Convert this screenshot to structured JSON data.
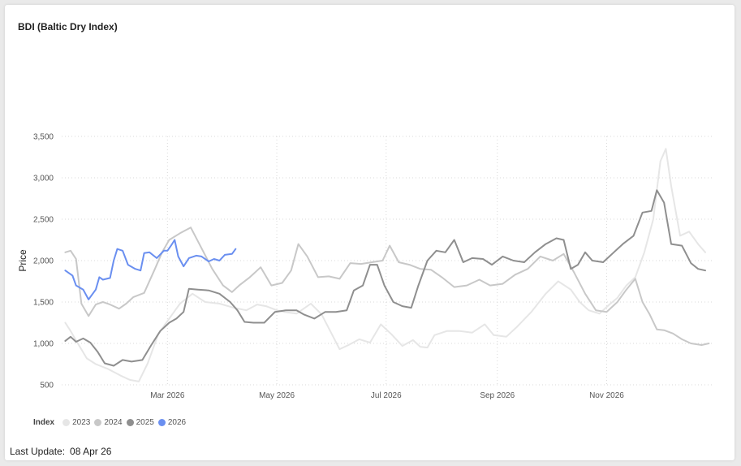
{
  "chart_data": {
    "type": "line",
    "title": "BDI (Baltic Dry Index)",
    "ylabel": "Price",
    "ylim": [
      500,
      3500
    ],
    "yticks": [
      500,
      1000,
      1500,
      2000,
      2500,
      3000,
      3500
    ],
    "ytick_labels": [
      "500",
      "1,000",
      "1,500",
      "2,000",
      "2,500",
      "3,000",
      "3,500"
    ],
    "xlim": [
      "2026-01-01",
      "2026-12-31"
    ],
    "xticks": [
      "2026-03-01",
      "2026-05-01",
      "2026-07-01",
      "2026-09-01",
      "2026-11-01"
    ],
    "xtick_labels": [
      "Mar 2026",
      "May 2026",
      "Jul 2026",
      "Sep 2026",
      "Nov 2026"
    ],
    "grid": true,
    "legend": {
      "title": "Index",
      "position": "bottom-left"
    },
    "series": [
      {
        "name": "2023",
        "color": "#e6e6e6",
        "points": [
          [
            "2026-01-03",
            1250
          ],
          [
            "2026-01-06",
            1150
          ],
          [
            "2026-01-10",
            1000
          ],
          [
            "2026-01-15",
            820
          ],
          [
            "2026-01-20",
            750
          ],
          [
            "2026-01-27",
            690
          ],
          [
            "2026-02-03",
            610
          ],
          [
            "2026-02-08",
            560
          ],
          [
            "2026-02-13",
            540
          ],
          [
            "2026-02-18",
            760
          ],
          [
            "2026-02-24",
            1120
          ],
          [
            "2026-03-02",
            1300
          ],
          [
            "2026-03-08",
            1480
          ],
          [
            "2026-03-15",
            1600
          ],
          [
            "2026-03-22",
            1500
          ],
          [
            "2026-03-30",
            1480
          ],
          [
            "2026-04-07",
            1430
          ],
          [
            "2026-04-14",
            1400
          ],
          [
            "2026-04-20",
            1470
          ],
          [
            "2026-04-25",
            1450
          ],
          [
            "2026-05-01",
            1400
          ],
          [
            "2026-05-05",
            1380
          ],
          [
            "2026-05-12",
            1360
          ],
          [
            "2026-05-20",
            1480
          ],
          [
            "2026-05-26",
            1350
          ],
          [
            "2026-06-01",
            1100
          ],
          [
            "2026-06-05",
            930
          ],
          [
            "2026-06-10",
            980
          ],
          [
            "2026-06-16",
            1050
          ],
          [
            "2026-06-22",
            1010
          ],
          [
            "2026-06-28",
            1230
          ],
          [
            "2026-07-04",
            1110
          ],
          [
            "2026-07-10",
            970
          ],
          [
            "2026-07-16",
            1040
          ],
          [
            "2026-07-20",
            960
          ],
          [
            "2026-07-24",
            950
          ],
          [
            "2026-07-28",
            1100
          ],
          [
            "2026-08-04",
            1150
          ],
          [
            "2026-08-11",
            1150
          ],
          [
            "2026-08-18",
            1130
          ],
          [
            "2026-08-25",
            1230
          ],
          [
            "2026-08-30",
            1100
          ],
          [
            "2026-09-06",
            1080
          ],
          [
            "2026-09-12",
            1200
          ],
          [
            "2026-09-20",
            1380
          ],
          [
            "2026-09-28",
            1600
          ],
          [
            "2026-10-05",
            1750
          ],
          [
            "2026-10-12",
            1650
          ],
          [
            "2026-10-17",
            1500
          ],
          [
            "2026-10-22",
            1400
          ],
          [
            "2026-10-28",
            1360
          ],
          [
            "2026-11-02",
            1460
          ],
          [
            "2026-11-07",
            1550
          ],
          [
            "2026-11-12",
            1700
          ],
          [
            "2026-11-17",
            1800
          ],
          [
            "2026-11-22",
            2100
          ],
          [
            "2026-11-27",
            2500
          ],
          [
            "2026-12-01",
            3200
          ],
          [
            "2026-12-04",
            3350
          ],
          [
            "2026-12-07",
            2900
          ],
          [
            "2026-12-12",
            2300
          ],
          [
            "2026-12-17",
            2350
          ],
          [
            "2026-12-22",
            2200
          ],
          [
            "2026-12-26",
            2100
          ]
        ]
      },
      {
        "name": "2024",
        "color": "#c8c8c8",
        "points": [
          [
            "2026-01-03",
            2100
          ],
          [
            "2026-01-06",
            2120
          ],
          [
            "2026-01-09",
            2020
          ],
          [
            "2026-01-12",
            1480
          ],
          [
            "2026-01-16",
            1330
          ],
          [
            "2026-01-20",
            1470
          ],
          [
            "2026-01-24",
            1500
          ],
          [
            "2026-01-28",
            1470
          ],
          [
            "2026-02-02",
            1420
          ],
          [
            "2026-02-06",
            1480
          ],
          [
            "2026-02-10",
            1560
          ],
          [
            "2026-02-16",
            1610
          ],
          [
            "2026-02-22",
            1900
          ],
          [
            "2026-02-26",
            2100
          ],
          [
            "2026-03-02",
            2250
          ],
          [
            "2026-03-08",
            2330
          ],
          [
            "2026-03-14",
            2400
          ],
          [
            "2026-03-20",
            2150
          ],
          [
            "2026-03-26",
            1900
          ],
          [
            "2026-04-01",
            1700
          ],
          [
            "2026-04-06",
            1620
          ],
          [
            "2026-04-10",
            1700
          ],
          [
            "2026-04-16",
            1800
          ],
          [
            "2026-04-22",
            1920
          ],
          [
            "2026-04-28",
            1700
          ],
          [
            "2026-05-04",
            1730
          ],
          [
            "2026-05-09",
            1880
          ],
          [
            "2026-05-13",
            2200
          ],
          [
            "2026-05-18",
            2050
          ],
          [
            "2026-05-24",
            1800
          ],
          [
            "2026-05-30",
            1810
          ],
          [
            "2026-06-05",
            1780
          ],
          [
            "2026-06-11",
            1970
          ],
          [
            "2026-06-17",
            1960
          ],
          [
            "2026-06-23",
            1980
          ],
          [
            "2026-06-29",
            2000
          ],
          [
            "2026-07-03",
            2180
          ],
          [
            "2026-07-08",
            1980
          ],
          [
            "2026-07-14",
            1950
          ],
          [
            "2026-07-20",
            1900
          ],
          [
            "2026-07-26",
            1890
          ],
          [
            "2026-08-01",
            1800
          ],
          [
            "2026-08-08",
            1680
          ],
          [
            "2026-08-15",
            1700
          ],
          [
            "2026-08-22",
            1770
          ],
          [
            "2026-08-28",
            1700
          ],
          [
            "2026-09-04",
            1720
          ],
          [
            "2026-09-11",
            1830
          ],
          [
            "2026-09-18",
            1900
          ],
          [
            "2026-09-25",
            2050
          ],
          [
            "2026-10-02",
            2000
          ],
          [
            "2026-10-08",
            2080
          ],
          [
            "2026-10-14",
            1850
          ],
          [
            "2026-10-20",
            1600
          ],
          [
            "2026-10-26",
            1400
          ],
          [
            "2026-11-01",
            1380
          ],
          [
            "2026-11-07",
            1500
          ],
          [
            "2026-11-12",
            1650
          ],
          [
            "2026-11-17",
            1780
          ],
          [
            "2026-11-21",
            1500
          ],
          [
            "2026-11-25",
            1350
          ],
          [
            "2026-11-29",
            1170
          ],
          [
            "2026-12-03",
            1160
          ],
          [
            "2026-12-08",
            1120
          ],
          [
            "2026-12-13",
            1050
          ],
          [
            "2026-12-18",
            1000
          ],
          [
            "2026-12-24",
            980
          ],
          [
            "2026-12-28",
            1000
          ]
        ]
      },
      {
        "name": "2025",
        "color": "#8f8f8f",
        "points": [
          [
            "2026-01-03",
            1030
          ],
          [
            "2026-01-06",
            1080
          ],
          [
            "2026-01-09",
            1020
          ],
          [
            "2026-01-13",
            1060
          ],
          [
            "2026-01-17",
            1010
          ],
          [
            "2026-01-21",
            900
          ],
          [
            "2026-01-25",
            760
          ],
          [
            "2026-01-30",
            730
          ],
          [
            "2026-02-04",
            800
          ],
          [
            "2026-02-09",
            780
          ],
          [
            "2026-02-15",
            800
          ],
          [
            "2026-02-20",
            980
          ],
          [
            "2026-02-25",
            1150
          ],
          [
            "2026-03-02",
            1250
          ],
          [
            "2026-03-06",
            1300
          ],
          [
            "2026-03-10",
            1380
          ],
          [
            "2026-03-13",
            1660
          ],
          [
            "2026-03-18",
            1650
          ],
          [
            "2026-03-24",
            1640
          ],
          [
            "2026-03-30",
            1600
          ],
          [
            "2026-04-05",
            1500
          ],
          [
            "2026-04-09",
            1400
          ],
          [
            "2026-04-13",
            1260
          ],
          [
            "2026-04-18",
            1250
          ],
          [
            "2026-04-24",
            1250
          ],
          [
            "2026-04-30",
            1380
          ],
          [
            "2026-05-06",
            1400
          ],
          [
            "2026-05-12",
            1400
          ],
          [
            "2026-05-16",
            1350
          ],
          [
            "2026-05-22",
            1300
          ],
          [
            "2026-05-28",
            1380
          ],
          [
            "2026-06-03",
            1380
          ],
          [
            "2026-06-09",
            1400
          ],
          [
            "2026-06-13",
            1640
          ],
          [
            "2026-06-18",
            1700
          ],
          [
            "2026-06-22",
            1950
          ],
          [
            "2026-06-26",
            1950
          ],
          [
            "2026-06-30",
            1700
          ],
          [
            "2026-07-05",
            1500
          ],
          [
            "2026-07-10",
            1450
          ],
          [
            "2026-07-15",
            1430
          ],
          [
            "2026-07-19",
            1700
          ],
          [
            "2026-07-24",
            2000
          ],
          [
            "2026-07-29",
            2120
          ],
          [
            "2026-08-03",
            2100
          ],
          [
            "2026-08-08",
            2250
          ],
          [
            "2026-08-13",
            1980
          ],
          [
            "2026-08-18",
            2030
          ],
          [
            "2026-08-24",
            2020
          ],
          [
            "2026-08-29",
            1950
          ],
          [
            "2026-09-04",
            2050
          ],
          [
            "2026-09-10",
            2000
          ],
          [
            "2026-09-16",
            1980
          ],
          [
            "2026-09-22",
            2100
          ],
          [
            "2026-09-28",
            2200
          ],
          [
            "2026-10-04",
            2270
          ],
          [
            "2026-10-08",
            2250
          ],
          [
            "2026-10-12",
            1900
          ],
          [
            "2026-10-16",
            1950
          ],
          [
            "2026-10-20",
            2100
          ],
          [
            "2026-10-24",
            2000
          ],
          [
            "2026-10-30",
            1980
          ],
          [
            "2026-11-05",
            2100
          ],
          [
            "2026-11-10",
            2200
          ],
          [
            "2026-11-16",
            2300
          ],
          [
            "2026-11-21",
            2580
          ],
          [
            "2026-11-26",
            2600
          ],
          [
            "2026-11-29",
            2850
          ],
          [
            "2026-12-03",
            2700
          ],
          [
            "2026-12-07",
            2200
          ],
          [
            "2026-12-13",
            2180
          ],
          [
            "2026-12-18",
            1970
          ],
          [
            "2026-12-22",
            1900
          ],
          [
            "2026-12-26",
            1880
          ]
        ]
      },
      {
        "name": "2026",
        "color": "#6a8ff0",
        "points": [
          [
            "2026-01-03",
            1880
          ],
          [
            "2026-01-07",
            1820
          ],
          [
            "2026-01-09",
            1700
          ],
          [
            "2026-01-13",
            1650
          ],
          [
            "2026-01-16",
            1530
          ],
          [
            "2026-01-20",
            1650
          ],
          [
            "2026-01-22",
            1800
          ],
          [
            "2026-01-24",
            1770
          ],
          [
            "2026-01-28",
            1790
          ],
          [
            "2026-01-30",
            2000
          ],
          [
            "2026-02-01",
            2140
          ],
          [
            "2026-02-04",
            2120
          ],
          [
            "2026-02-07",
            1950
          ],
          [
            "2026-02-11",
            1900
          ],
          [
            "2026-02-14",
            1880
          ],
          [
            "2026-02-16",
            2090
          ],
          [
            "2026-02-19",
            2100
          ],
          [
            "2026-02-23",
            2030
          ],
          [
            "2026-02-27",
            2120
          ],
          [
            "2026-03-01",
            2120
          ],
          [
            "2026-03-03",
            2180
          ],
          [
            "2026-03-05",
            2250
          ],
          [
            "2026-03-07",
            2050
          ],
          [
            "2026-03-10",
            1930
          ],
          [
            "2026-03-13",
            2030
          ],
          [
            "2026-03-17",
            2060
          ],
          [
            "2026-03-20",
            2050
          ],
          [
            "2026-03-24",
            1990
          ],
          [
            "2026-03-27",
            2020
          ],
          [
            "2026-03-30",
            2000
          ],
          [
            "2026-04-02",
            2070
          ],
          [
            "2026-04-06",
            2080
          ],
          [
            "2026-04-08",
            2140
          ]
        ]
      }
    ]
  },
  "footer": {
    "last_update_label": "Last Update:",
    "last_update_value": "08 Apr 26"
  }
}
